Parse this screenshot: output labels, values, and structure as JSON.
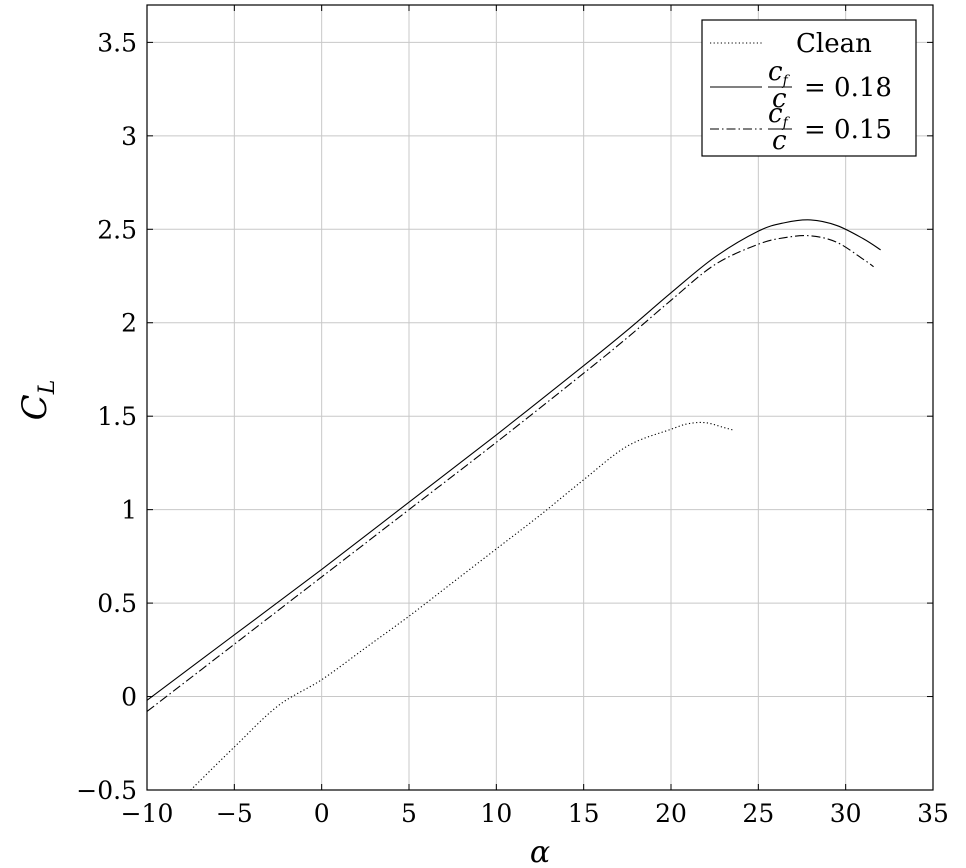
{
  "chart_data": {
    "type": "line",
    "xlabel": "α",
    "ylabel": "C",
    "ylabel_sub": "L",
    "xlim": [
      -10,
      35
    ],
    "ylim": [
      -0.5,
      3.7
    ],
    "grid": true,
    "legend_position": "top-right",
    "x_ticks": [
      -10,
      -5,
      0,
      5,
      10,
      15,
      20,
      25,
      30,
      35
    ],
    "x_tick_labels": [
      "−10",
      "−5",
      "0",
      "5",
      "10",
      "15",
      "20",
      "25",
      "30",
      "35"
    ],
    "y_ticks": [
      -0.5,
      0,
      0.5,
      1,
      1.5,
      2,
      2.5,
      3,
      3.5
    ],
    "y_tick_labels": [
      "−0.5",
      "0",
      "0.5",
      "1",
      "1.5",
      "2",
      "2.5",
      "3",
      "3.5"
    ],
    "series": [
      {
        "name": "Clean",
        "style": "dotted",
        "x": [
          -7.5,
          -5,
          -2.5,
          0,
          2.5,
          5,
          7.5,
          10,
          12.5,
          15,
          17.5,
          20,
          21,
          22,
          23,
          23.6
        ],
        "y": [
          -0.5,
          -0.27,
          -0.05,
          0.09,
          0.26,
          0.43,
          0.61,
          0.79,
          0.97,
          1.16,
          1.34,
          1.43,
          1.46,
          1.465,
          1.44,
          1.425
        ]
      },
      {
        "name_prefix": "",
        "name_num": "c",
        "name_num_sub": "f",
        "name_den": "c",
        "name_value": "= 0.18",
        "style": "solid",
        "x": [
          -10,
          -5,
          0,
          5,
          10,
          15,
          17.5,
          20,
          22.5,
          25,
          26.5,
          28,
          29.5,
          31,
          32
        ],
        "y": [
          -0.02,
          0.33,
          0.68,
          1.04,
          1.4,
          1.77,
          1.96,
          2.16,
          2.35,
          2.49,
          2.535,
          2.55,
          2.52,
          2.45,
          2.39
        ]
      },
      {
        "name_prefix": "",
        "name_num": "c",
        "name_num_sub": "f",
        "name_den": "c",
        "name_value": "= 0.15",
        "style": "dashdot",
        "x": [
          -10,
          -5,
          0,
          5,
          10,
          15,
          17.5,
          20,
          22.5,
          25,
          26.5,
          28,
          29.5,
          31,
          31.6
        ],
        "y": [
          -0.08,
          0.28,
          0.64,
          1.0,
          1.36,
          1.73,
          1.92,
          2.12,
          2.31,
          2.42,
          2.455,
          2.465,
          2.43,
          2.34,
          2.3
        ]
      }
    ]
  }
}
